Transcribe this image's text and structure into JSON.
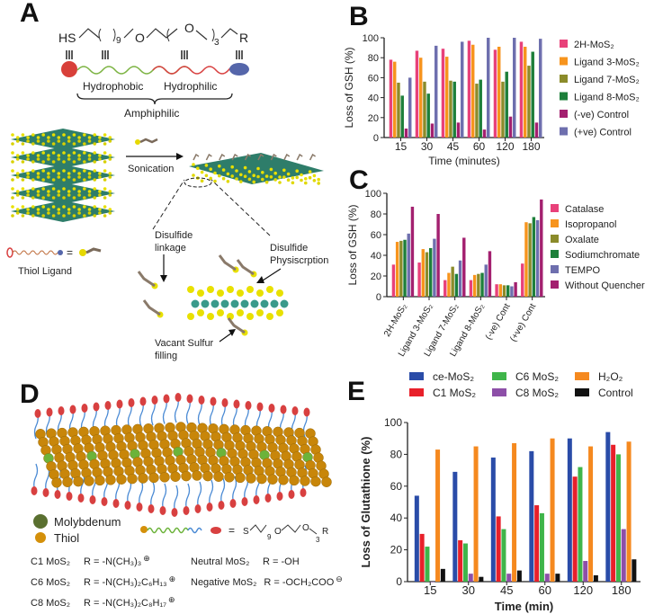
{
  "panels": {
    "A": {
      "label": "A",
      "formula": {
        "hs": "HS",
        "n1": "9",
        "o1": "O",
        "o2": "O",
        "n2": "3",
        "r": "R"
      },
      "hydrophobic": "Hydrophobic",
      "hydrophilic": "Hydrophilic",
      "amphiphilic": "Amphiphilic",
      "sonication": "Sonication",
      "thiol_ligand": "Thiol Ligand",
      "equals": "=",
      "disulfide_linkage": [
        "Disulfide",
        "linkage"
      ],
      "disulfide_physisorption": [
        "Disulfide",
        "Physiscrption"
      ],
      "vacant_sulfur": [
        "Vacant Sulfur",
        "filling"
      ]
    },
    "D": {
      "label": "D",
      "legend_mo": "Molybdenum",
      "legend_thiol": "Thiol",
      "equals": "=",
      "formula": {
        "s": "S",
        "n1": "9",
        "o1": "O",
        "o2": "O",
        "n2": "3",
        "r": "R"
      },
      "r_groups": [
        {
          "name": "C1 MoS₂",
          "r": "R = -N(CH₃)₃",
          "charge": "⊕"
        },
        {
          "name": "C6 MoS₂",
          "r": "R = -N(CH₃)₂C₆H₁₃",
          "charge": "⊕"
        },
        {
          "name": "C8 MoS₂",
          "r": "R = -N(CH₃)₂C₈H₁₇",
          "charge": "⊕"
        },
        {
          "name": "Neutral MoS₂",
          "r": "R = -OH",
          "charge": ""
        },
        {
          "name": "Negative MoS₂",
          "r": "R = -OCH₂COO",
          "charge": "⊖"
        }
      ]
    }
  },
  "chart_data": [
    {
      "panel": "B",
      "type": "bar",
      "xlabel": "Time (minutes)",
      "ylabel": "Loss of GSH (%)",
      "ylim": [
        0,
        100
      ],
      "yticks": [
        "0",
        "20",
        "40",
        "60",
        "80",
        "100"
      ],
      "categories": [
        "15",
        "30",
        "45",
        "60",
        "120",
        "180"
      ],
      "legend": "right",
      "series": [
        {
          "name": "2H-MoS₂",
          "color": "#e8417a",
          "values": [
            78,
            87,
            89,
            97,
            88,
            96
          ]
        },
        {
          "name": "Ligand 3-MoS₂",
          "color": "#f7941d",
          "values": [
            76,
            80,
            81,
            93,
            91,
            91
          ]
        },
        {
          "name": "Ligand 7-MoS₂",
          "color": "#8b8b2a",
          "values": [
            55,
            56,
            57,
            54,
            56,
            72
          ]
        },
        {
          "name": "Ligand 8-MoS₂",
          "color": "#1d7f3a",
          "values": [
            42,
            44,
            56,
            58,
            66,
            86
          ]
        },
        {
          "name": "(-ve) Control",
          "color": "#a3206f",
          "values": [
            9,
            14,
            15,
            8,
            21,
            15
          ]
        },
        {
          "name": "(+ve) Control",
          "color": "#6e6fae",
          "values": [
            60,
            92,
            96,
            100,
            100,
            99
          ]
        }
      ]
    },
    {
      "panel": "C",
      "type": "bar",
      "xlabel": "",
      "ylabel": "Loss of GSH (%)",
      "ylim": [
        0,
        100
      ],
      "yticks": [
        "0",
        "20",
        "40",
        "60",
        "80",
        "100"
      ],
      "categories": [
        "2H-MoS₂",
        "Ligand 3-MoS₂",
        "Ligand 7-MoS₂",
        "Ligand 8-MoS₂",
        "(-ve) Cont",
        "(+ve) Cont"
      ],
      "legend": "right",
      "series": [
        {
          "name": "Catalase",
          "color": "#e8417a",
          "values": [
            31,
            33,
            16,
            16,
            12,
            32
          ]
        },
        {
          "name": "Isopropanol",
          "color": "#f7941d",
          "values": [
            53,
            46,
            23,
            21,
            12,
            72
          ]
        },
        {
          "name": "Oxalate",
          "color": "#8b8b2a",
          "values": [
            54,
            43,
            29,
            22,
            11,
            71
          ]
        },
        {
          "name": "Sodiumchromate",
          "color": "#1d7f3a",
          "values": [
            55,
            47,
            22,
            23,
            11,
            77
          ]
        },
        {
          "name": "TEMPO",
          "color": "#6e6fae",
          "values": [
            61,
            56,
            35,
            31,
            10,
            74
          ]
        },
        {
          "name": "Without Quencher",
          "color": "#a3206f",
          "values": [
            87,
            80,
            57,
            44,
            14,
            94
          ]
        }
      ]
    },
    {
      "panel": "E",
      "type": "bar",
      "xlabel": "Time (min)",
      "ylabel": "Loss of Glutathione (%)",
      "ylim": [
        0,
        100
      ],
      "yticks": [
        "0",
        "20",
        "40",
        "60",
        "80",
        "100"
      ],
      "categories": [
        "15",
        "30",
        "45",
        "60",
        "120",
        "180"
      ],
      "legend": "top",
      "series": [
        {
          "name": "ce-MoS₂",
          "color": "#2a4ca8",
          "values": [
            54,
            69,
            78,
            82,
            90,
            94
          ]
        },
        {
          "name": "C1 MoS₂",
          "color": "#e8202a",
          "values": [
            30,
            26,
            41,
            48,
            66,
            86
          ]
        },
        {
          "name": "C6 MoS₂",
          "color": "#3fb54a",
          "values": [
            22,
            24,
            33,
            43,
            72,
            80
          ]
        },
        {
          "name": "C8 MoS₂",
          "color": "#8d4fa8",
          "values": [
            0,
            5,
            5,
            5,
            13,
            33
          ]
        },
        {
          "name": "H₂O₂",
          "color": "#f5891f",
          "values": [
            83,
            85,
            87,
            90,
            85,
            88
          ]
        },
        {
          "name": "Control",
          "color": "#111111",
          "values": [
            8,
            3,
            7,
            5,
            4,
            14
          ]
        }
      ]
    }
  ]
}
